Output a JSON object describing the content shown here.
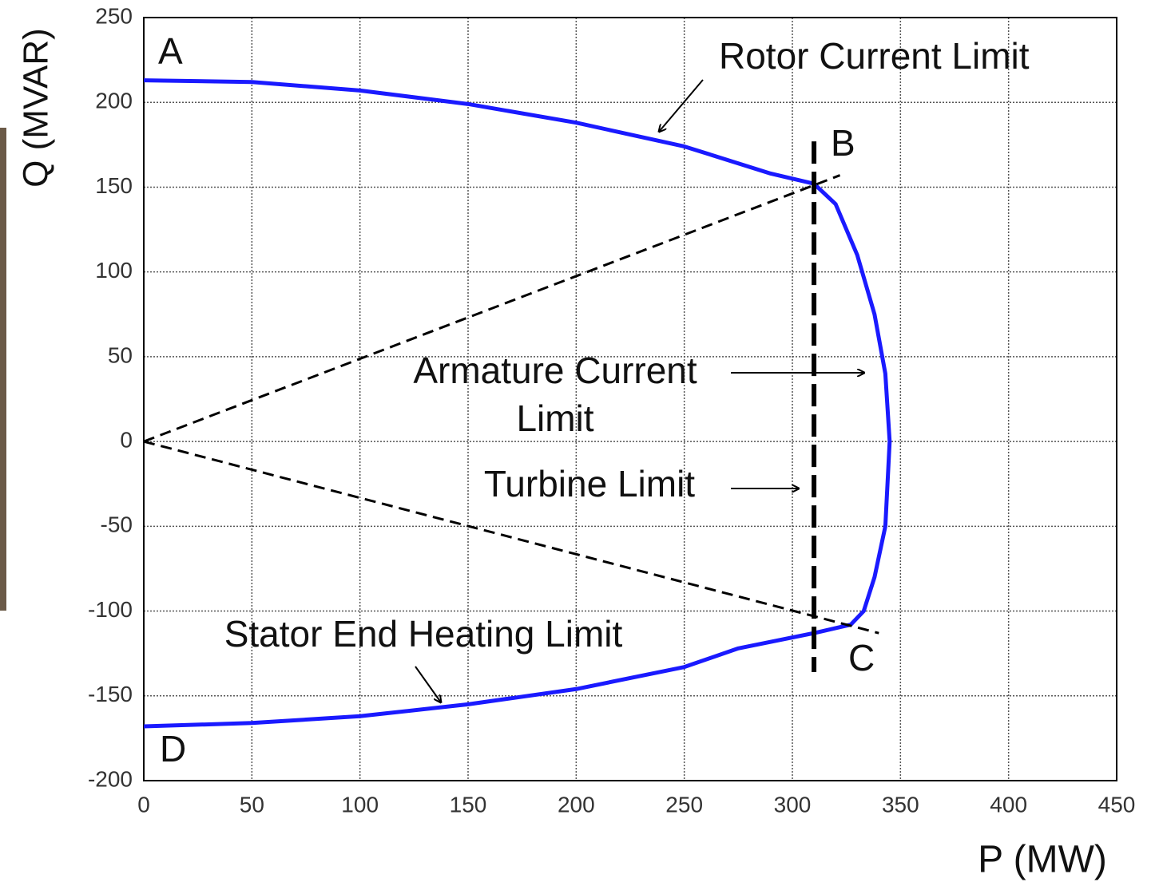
{
  "chart_data": {
    "type": "line",
    "xlabel": "P (MW)",
    "ylabel": "Q (MVAR)",
    "xlim": [
      0,
      450
    ],
    "ylim": [
      -200,
      250
    ],
    "xticks": [
      0,
      50,
      100,
      150,
      200,
      250,
      300,
      350,
      400,
      450
    ],
    "yticks": [
      -200,
      -150,
      -100,
      -50,
      0,
      50,
      100,
      150,
      200,
      250
    ],
    "grid": true,
    "series": [
      {
        "color": "#1a1aff",
        "dashed": false,
        "x": [
          0,
          50,
          100,
          150,
          200,
          250,
          290,
          310,
          320,
          330,
          338,
          343,
          345,
          343,
          338,
          333,
          327,
          310,
          275,
          250,
          200,
          150,
          100,
          50,
          0
        ],
        "values": [
          213,
          212,
          207,
          199,
          188,
          174,
          158,
          152,
          140,
          110,
          75,
          40,
          0,
          -50,
          -80,
          -100,
          -108,
          -113,
          -122,
          -133,
          -146,
          -155,
          -162,
          -166,
          -168
        ]
      },
      {
        "color": "#000000",
        "dashed": true,
        "x": [
          0,
          322
        ],
        "values": [
          0,
          157
        ]
      },
      {
        "color": "#000000",
        "dashed": true,
        "x": [
          0,
          340
        ],
        "values": [
          0,
          -113
        ]
      },
      {
        "color": "#000000",
        "dashed": true,
        "x": [
          310,
          310
        ],
        "values": [
          177,
          -136
        ]
      }
    ],
    "annotations": [
      "A",
      "B",
      "C",
      "D",
      "Rotor Current Limit",
      "Armature Current",
      "Limit",
      "Turbine Limit",
      "Stator End Heating Limit"
    ]
  }
}
